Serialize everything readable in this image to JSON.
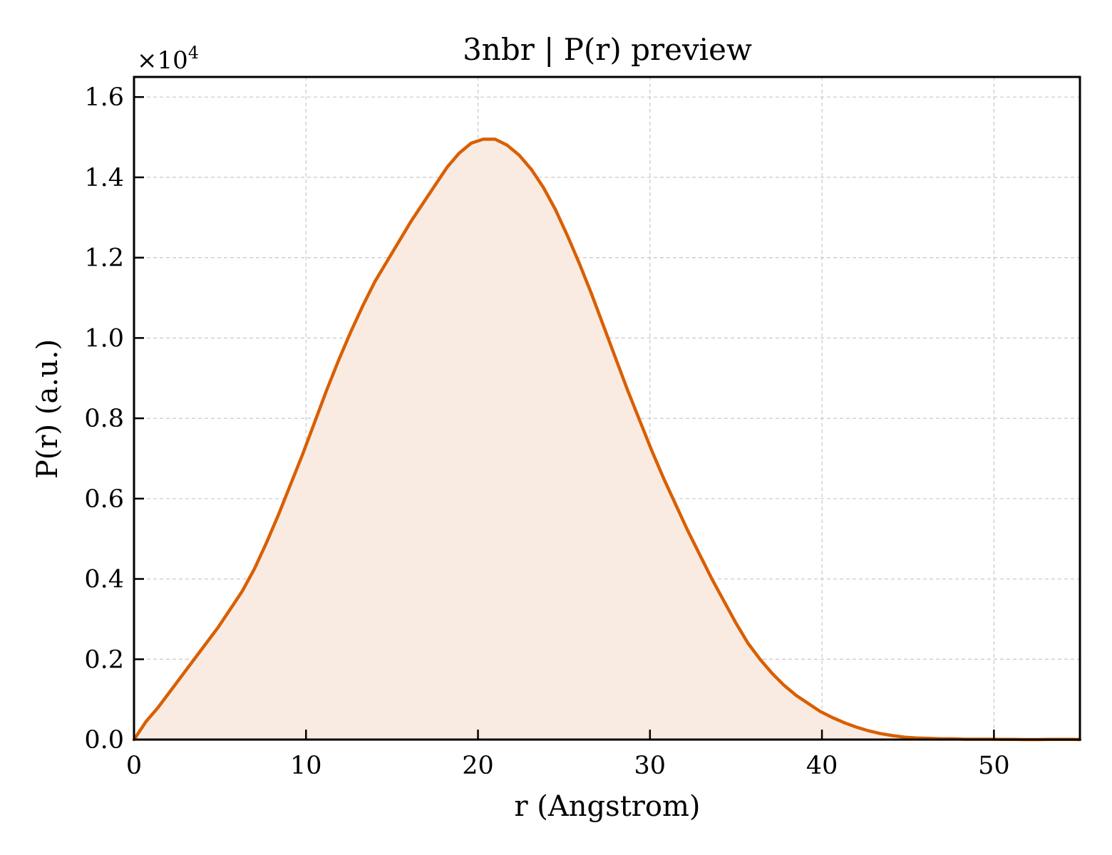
{
  "chart_data": {
    "type": "area",
    "title": "3nbr | P(r) preview",
    "xlabel": "r (Angstrom)",
    "ylabel": "P(r) (a.u.)",
    "y_multiplier_base": "×10",
    "y_multiplier_exp": "4",
    "xlim": [
      0,
      55
    ],
    "ylim": [
      0,
      1.65
    ],
    "xticks": [
      0,
      10,
      20,
      30,
      40,
      50
    ],
    "xtick_labels": [
      "0",
      "10",
      "20",
      "30",
      "40",
      "50"
    ],
    "yticks": [
      0,
      0.2,
      0.4,
      0.6,
      0.8,
      1.0,
      1.2,
      1.4,
      1.6
    ],
    "ytick_labels": [
      "0.0",
      "0.2",
      "0.4",
      "0.6",
      "0.8",
      "1.0",
      "1.2",
      "1.4",
      "1.6"
    ],
    "grid": true,
    "line_color": "#d95f02",
    "fill_color": "#f9ebe1",
    "series": [
      {
        "x": [
          0,
          0.7,
          1.4,
          2.1,
          2.8,
          3.5,
          4.2,
          4.9,
          5.6,
          6.3,
          7.0,
          7.7,
          8.4,
          9.1,
          9.8,
          10.5,
          11.2,
          11.9,
          12.6,
          13.3,
          14.0,
          14.7,
          15.4,
          16.1,
          16.8,
          17.5,
          18.2,
          18.9,
          19.6,
          20.3,
          21.0,
          21.7,
          22.4,
          23.1,
          23.8,
          24.5,
          25.2,
          25.9,
          26.6,
          27.3,
          28.0,
          28.7,
          29.4,
          30.1,
          30.8,
          31.5,
          32.2,
          32.9,
          33.6,
          34.3,
          35.0,
          35.7,
          36.4,
          37.1,
          37.8,
          38.5,
          39.2,
          39.9,
          40.6,
          41.3,
          42.0,
          42.7,
          43.4,
          44.1,
          44.8,
          45.5,
          46.2,
          46.9,
          47.6,
          48.3,
          49.0,
          49.7,
          50.4,
          51.1,
          51.8,
          52.5,
          53.2,
          53.9,
          54.6,
          55.0
        ],
        "y": [
          0.0,
          0.045,
          0.08,
          0.12,
          0.16,
          0.2,
          0.24,
          0.28,
          0.325,
          0.37,
          0.425,
          0.49,
          0.56,
          0.635,
          0.71,
          0.79,
          0.87,
          0.945,
          1.015,
          1.08,
          1.14,
          1.19,
          1.24,
          1.29,
          1.335,
          1.38,
          1.425,
          1.46,
          1.485,
          1.495,
          1.495,
          1.48,
          1.455,
          1.42,
          1.375,
          1.32,
          1.255,
          1.185,
          1.11,
          1.03,
          0.95,
          0.87,
          0.795,
          0.72,
          0.65,
          0.585,
          0.52,
          0.46,
          0.4,
          0.345,
          0.29,
          0.24,
          0.2,
          0.165,
          0.135,
          0.11,
          0.09,
          0.07,
          0.055,
          0.042,
          0.031,
          0.022,
          0.015,
          0.01,
          0.006,
          0.004,
          0.003,
          0.002,
          0.002,
          0.001,
          0.001,
          0.001,
          0.0005,
          0.0005,
          0.0,
          0.0,
          0.0005,
          0.0005,
          0.0005,
          0.0
        ]
      }
    ]
  }
}
